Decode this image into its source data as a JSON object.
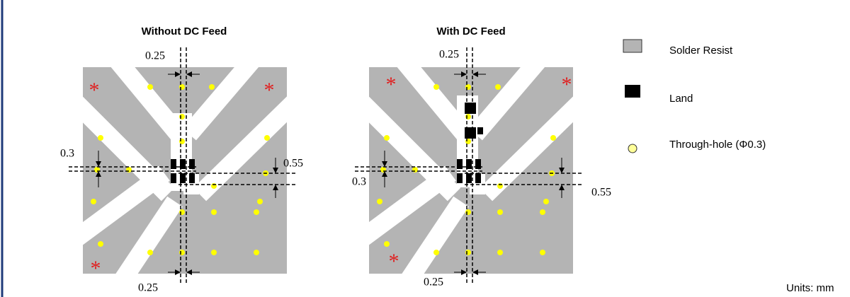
{
  "panels": [
    {
      "title": "Without DC Feed",
      "dims": [
        "0.25",
        "0.3",
        "0.55",
        "0.25"
      ]
    },
    {
      "title": "With DC Feed",
      "dims": [
        "0.25",
        "0.3",
        "0.55",
        "0.25"
      ]
    }
  ],
  "marker": "*",
  "legend": [
    "Solder Resist",
    "Land",
    "Through-hole (Φ0.3)"
  ],
  "units": "Units: mm"
}
